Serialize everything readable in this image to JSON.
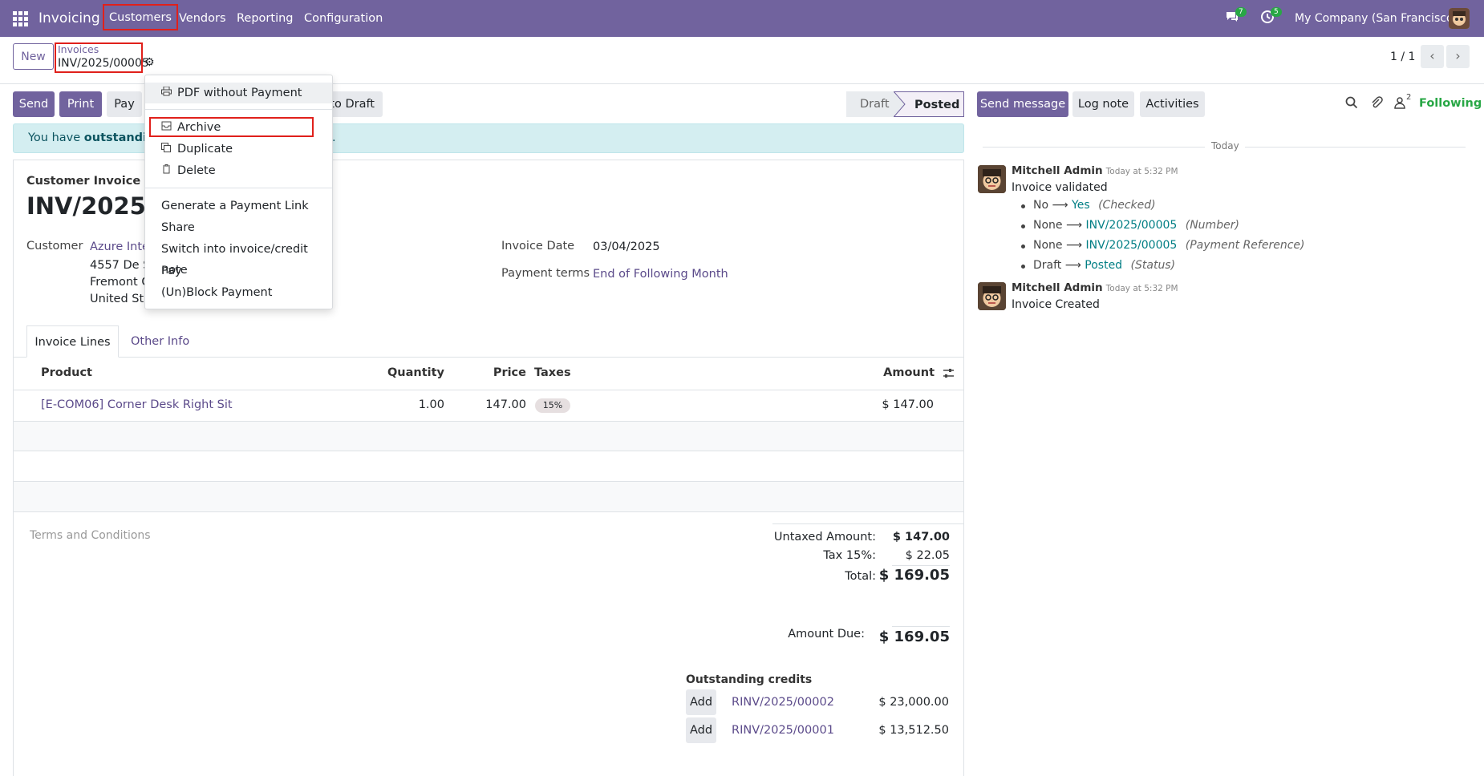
{
  "navbar": {
    "app_name": "Invoicing",
    "menu": [
      "Customers",
      "Vendors",
      "Reporting",
      "Configuration"
    ],
    "messages_count": "7",
    "activities_count": "5",
    "company": "My Company (San Francisco)"
  },
  "control_panel": {
    "new_label": "New",
    "breadcrumb_parent": "Invoices",
    "breadcrumb_current": "INV/2025/00005",
    "pager_text": "1 / 1"
  },
  "actions": {
    "send": "Send",
    "print": "Print",
    "pay": "Pay",
    "reset_draft": "to Draft",
    "status_draft": "Draft",
    "status_posted": "Posted"
  },
  "gear_menu": {
    "items": [
      "PDF without Payment",
      "Archive",
      "Duplicate",
      "Delete",
      "Generate a Payment Link",
      "Share",
      "Switch into invoice/credit note",
      "Pay",
      "(Un)Block Payment"
    ]
  },
  "alert": {
    "prefix": "You have ",
    "bold": "outstanding",
    "suffix": "."
  },
  "invoice": {
    "type_label": "Customer Invoice",
    "number_partial": "INV/2025/0",
    "customer_label": "Customer",
    "customer_name_partial": "Azure Inter",
    "address_lines": [
      "4557 De Si",
      "Fremont C",
      "United Sta"
    ],
    "invoice_date_label": "Invoice Date",
    "invoice_date": "03/04/2025",
    "payment_terms_label": "Payment terms",
    "payment_terms": "End of Following Month"
  },
  "tabs": [
    "Invoice Lines",
    "Other Info"
  ],
  "lines": {
    "headers": {
      "product": "Product",
      "quantity": "Quantity",
      "price": "Price",
      "taxes": "Taxes",
      "amount": "Amount"
    },
    "rows": [
      {
        "product": "[E-COM06] Corner Desk Right Sit",
        "quantity": "1.00",
        "price": "147.00",
        "tax": "15%",
        "amount": "$ 147.00"
      }
    ]
  },
  "terms_placeholder": "Terms and Conditions",
  "totals": {
    "untaxed_label": "Untaxed Amount:",
    "untaxed": "$ 147.00",
    "tax_label": "Tax 15%:",
    "tax": "$ 22.05",
    "total_label": "Total:",
    "total": "$ 169.05",
    "due_label": "Amount Due:",
    "due": "$ 169.05"
  },
  "outstanding": {
    "title": "Outstanding credits",
    "add_label": "Add",
    "credits": [
      {
        "ref": "RINV/2025/00002",
        "amount": "$ 23,000.00"
      },
      {
        "ref": "RINV/2025/00001",
        "amount": "$ 13,512.50"
      }
    ]
  },
  "chatter": {
    "send_message": "Send message",
    "log_note": "Log note",
    "activities": "Activities",
    "followers_count": "2",
    "following": "Following",
    "today": "Today",
    "messages": [
      {
        "author": "Mitchell Admin",
        "time": "Today at 5:32 PM",
        "body": "Invoice validated",
        "changes": [
          {
            "old": "No",
            "new": "Yes",
            "field": "(Checked)"
          },
          {
            "old": "None",
            "new": "INV/2025/00005",
            "field": "(Number)"
          },
          {
            "old": "None",
            "new": "INV/2025/00005",
            "field": "(Payment Reference)"
          },
          {
            "old": "Draft",
            "new": "Posted",
            "field": "(Status)"
          }
        ]
      },
      {
        "author": "Mitchell Admin",
        "time": "Today at 5:32 PM",
        "body": "Invoice Created"
      }
    ]
  }
}
